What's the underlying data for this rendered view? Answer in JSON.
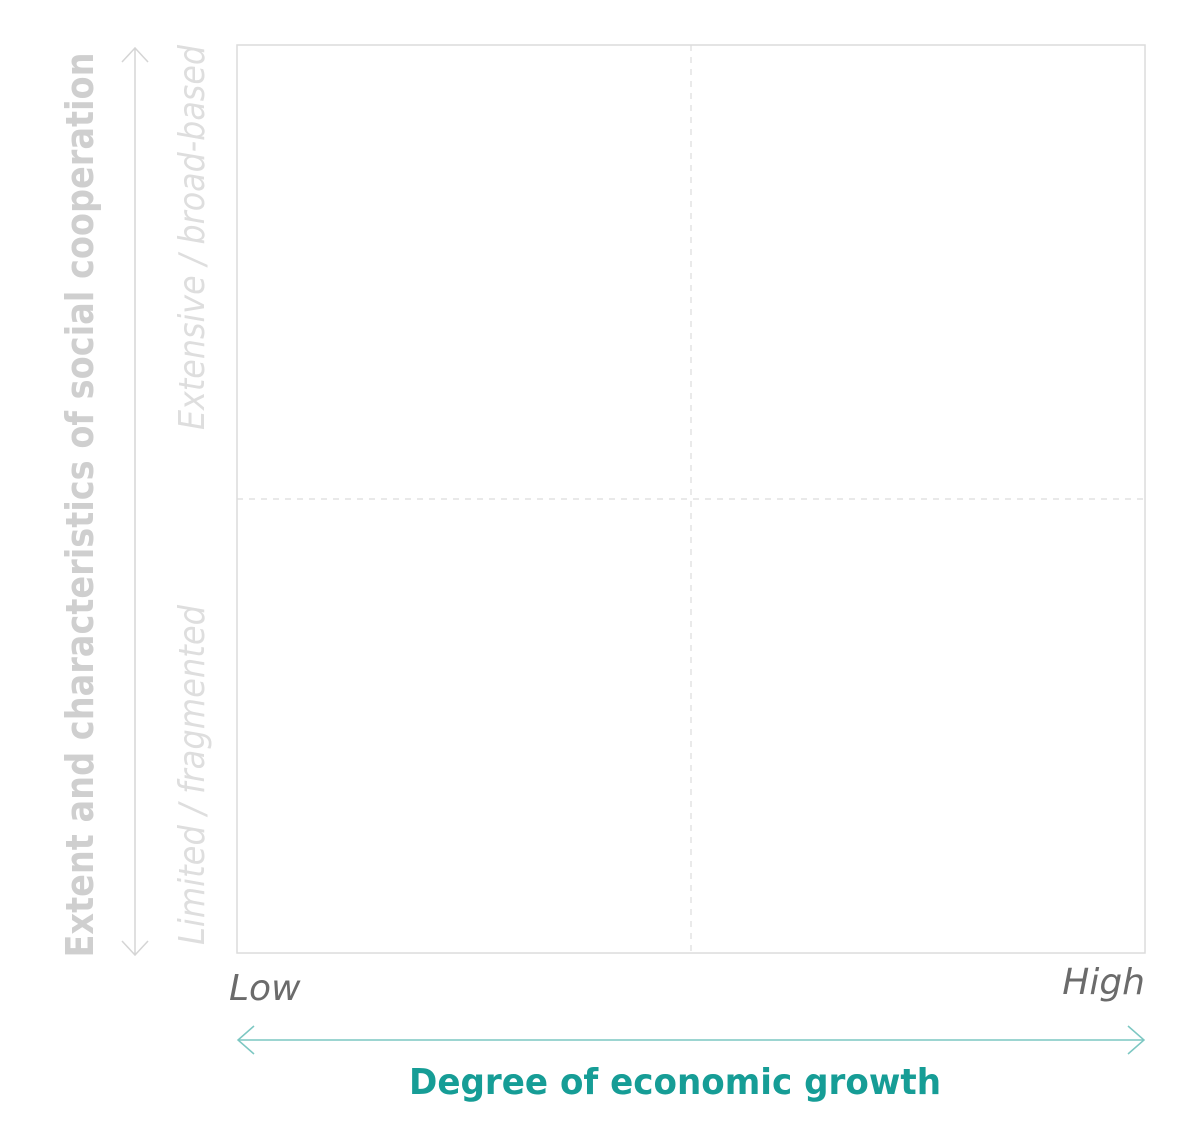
{
  "y_axis": {
    "title": "Extent and characteristics of social cooperation",
    "high_label": "Extensive / broad-based",
    "low_label": "Limited / fragmented"
  },
  "x_axis": {
    "title": "Degree of economic growth",
    "low_label": "Low",
    "high_label": "High"
  }
}
